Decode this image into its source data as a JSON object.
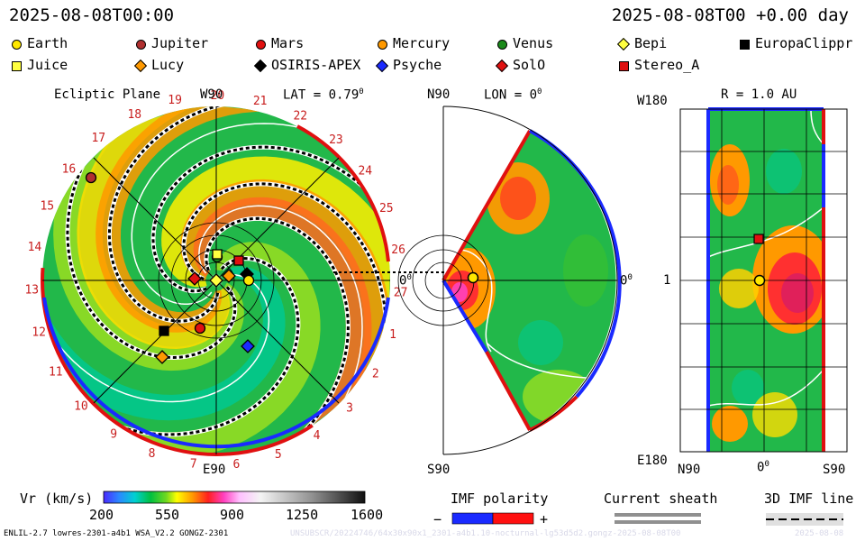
{
  "header": {
    "left_timestamp": "2025-08-08T00:00",
    "right_timestamp": "2025-08-08T00 +0.00 day"
  },
  "legend_bodies": [
    {
      "name": "Earth",
      "color": "#ffe800",
      "shape": "circle"
    },
    {
      "name": "Jupiter",
      "color": "#b03030",
      "shape": "circle"
    },
    {
      "name": "Mars",
      "color": "#e01010",
      "shape": "circle"
    },
    {
      "name": "Mercury",
      "color": "#ff9900",
      "shape": "circle"
    },
    {
      "name": "Venus",
      "color": "#1a8a1a",
      "shape": "circle"
    },
    {
      "name": "Bepi",
      "color": "#ffff40",
      "shape": "diamond"
    },
    {
      "name": "EuropaClippr",
      "color": "#000000",
      "shape": "square"
    },
    {
      "name": "Juice",
      "color": "#ffff40",
      "shape": "square"
    },
    {
      "name": "Lucy",
      "color": "#ff9900",
      "shape": "diamond"
    },
    {
      "name": "OSIRIS-APEX",
      "color": "#000000",
      "shape": "diamond"
    },
    {
      "name": "Psyche",
      "color": "#1a2aff",
      "shape": "diamond"
    },
    {
      "name": "SolO",
      "color": "#e01010",
      "shape": "diamond"
    },
    {
      "name": "Stereo_A",
      "color": "#e01010",
      "shape": "square"
    }
  ],
  "ecliptic": {
    "title": "Ecliptic Plane",
    "top_label": "W90",
    "bottom_label": "E90",
    "lat_label": "LAT = 0.79",
    "deg_sup": "0",
    "right_label": "0",
    "carrington_ticks": [
      "17",
      "18",
      "19",
      "20",
      "21",
      "22",
      "23",
      "24",
      "25",
      "26",
      "27",
      "1",
      "2",
      "3",
      "4",
      "5",
      "6",
      "7",
      "8",
      "9",
      "10",
      "11",
      "12",
      "13",
      "14",
      "15",
      "16"
    ]
  },
  "meridional": {
    "top_label": "N90",
    "bottom_label": "S90",
    "lon_label": "LON = 0",
    "deg_sup": "0",
    "right_label": "0"
  },
  "radial": {
    "r_label": "R = 1.0 AU",
    "top_left": "W180",
    "bottom_left": "E180",
    "mid_left": "1",
    "bottom_ticks": [
      "N90",
      "0",
      "S90"
    ],
    "deg_sup": "0"
  },
  "colorbar": {
    "title": "Vr (km/s)",
    "ticks": [
      "200",
      "550",
      "900",
      "1250",
      "1600"
    ]
  },
  "imf": {
    "title": "IMF polarity",
    "minus": "−",
    "plus": "+"
  },
  "sheath": {
    "title": "Current sheath"
  },
  "imfline": {
    "title": "3D IMF line"
  },
  "footer": {
    "model": "ENLIL-2.7 lowres-2301-a4b1 WSA_V2.2 GONGZ-2301",
    "run": "UNSUBSCR/20224746/64x30x90x1_2301-a4b1.10-nocturnal-lg53d5d2.gongz-2025-08-08T00",
    "date": "2025-08-08"
  },
  "colors": {
    "imf_negative": "#1a2aff",
    "imf_positive": "#ff1010"
  }
}
